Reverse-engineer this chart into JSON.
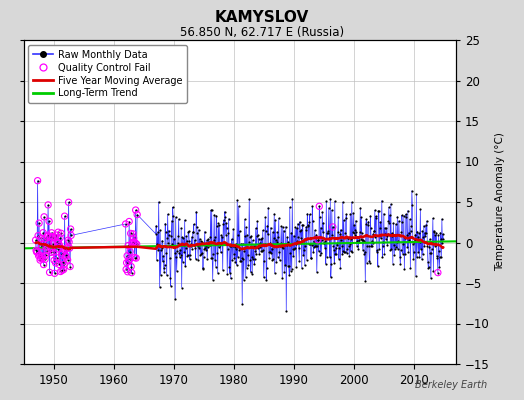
{
  "title": "KAMYSLOV",
  "subtitle": "56.850 N, 62.717 E (Russia)",
  "ylabel_right": "Temperature Anomaly (°C)",
  "watermark": "Berkeley Earth",
  "xlim": [
    1945,
    2017
  ],
  "ylim": [
    -15,
    25
  ],
  "yticks": [
    -15,
    -10,
    -5,
    0,
    5,
    10,
    15,
    20,
    25
  ],
  "xticks": [
    1950,
    1960,
    1970,
    1980,
    1990,
    2000,
    2010
  ],
  "bg_color": "#d8d8d8",
  "plot_bg_color": "#ffffff",
  "raw_line_color": "#3333ff",
  "raw_dot_color": "#000000",
  "qc_fail_color": "#ff00ff",
  "moving_avg_color": "#dd0000",
  "trend_color": "#00cc00",
  "seed": 42,
  "start_year": 1947,
  "end_year": 2014
}
